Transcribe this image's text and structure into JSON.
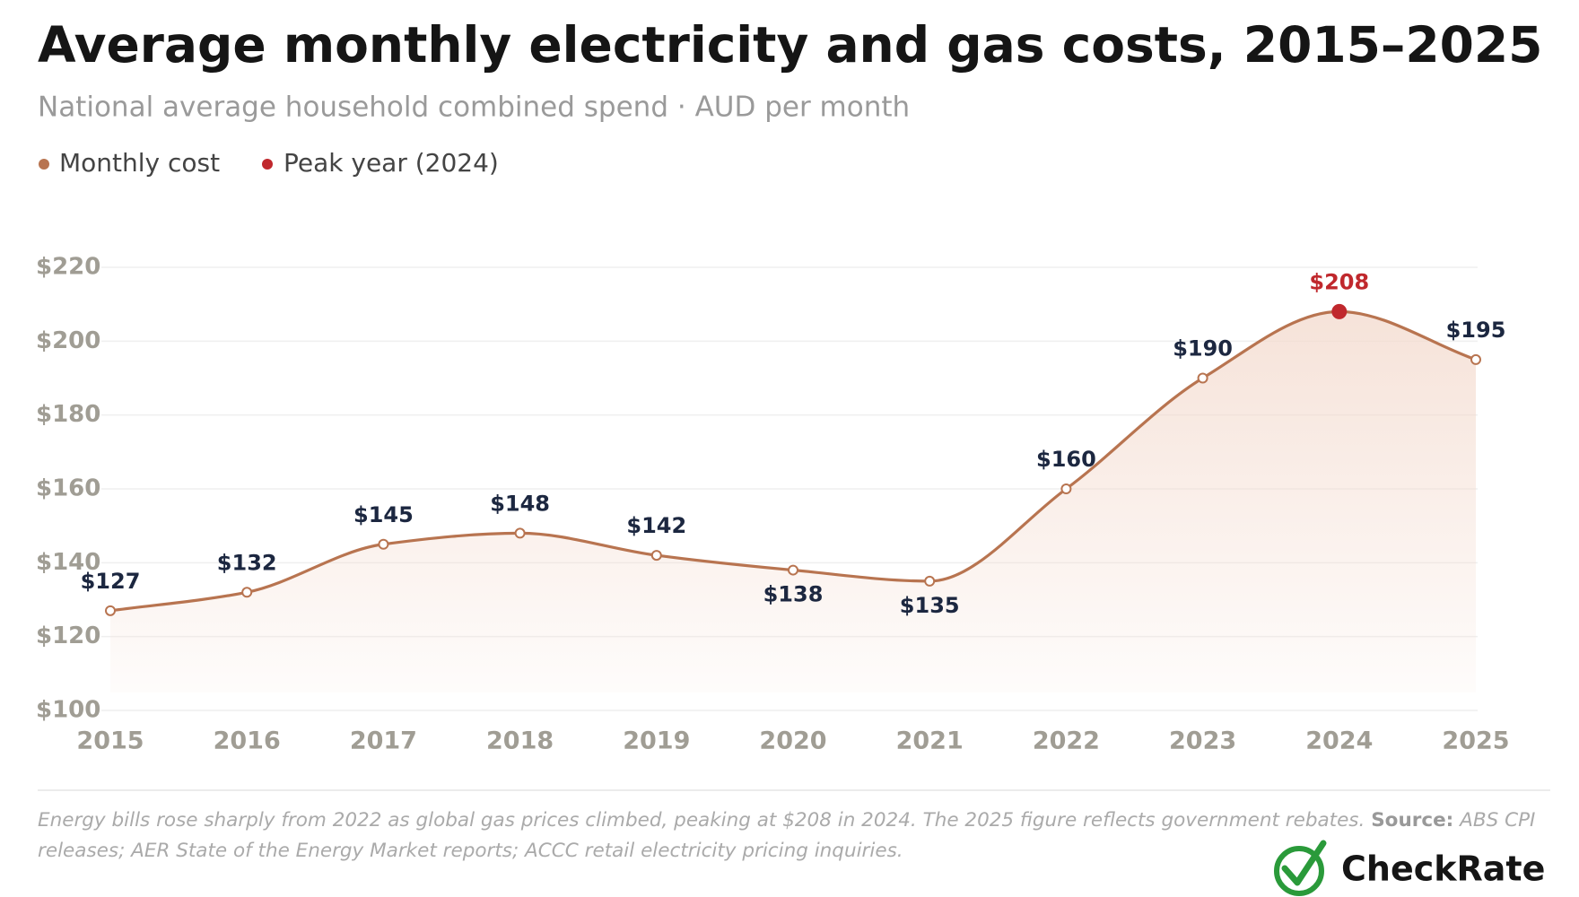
{
  "chart_data": {
    "type": "line",
    "title": "Average monthly electricity and gas costs, 2015–2025",
    "subtitle": "National average household combined spend · AUD per month",
    "categories": [
      "2015",
      "2016",
      "2017",
      "2018",
      "2019",
      "2020",
      "2021",
      "2022",
      "2023",
      "2024",
      "2025"
    ],
    "series": [
      {
        "name": "Monthly cost",
        "color": "#b87450",
        "values": [
          127,
          132,
          145,
          148,
          142,
          138,
          135,
          160,
          190,
          208,
          195
        ],
        "value_labels": [
          "$127",
          "$132",
          "$145",
          "$148",
          "$142",
          "$138",
          "$135",
          "$160",
          "$190",
          "$208",
          "$195"
        ]
      }
    ],
    "peak": {
      "name": "Peak year (2024)",
      "color": "#c0282d",
      "category": "2024"
    },
    "ylim": [
      100,
      220
    ],
    "yticks": [
      {
        "value": 100,
        "label": "$100"
      },
      {
        "value": 120,
        "label": "$120"
      },
      {
        "value": 140,
        "label": "$140"
      },
      {
        "value": 160,
        "label": "$160"
      },
      {
        "value": 180,
        "label": "$180"
      },
      {
        "value": 200,
        "label": "$200"
      },
      {
        "value": 220,
        "label": "$220"
      }
    ],
    "grid": true
  },
  "footnote": {
    "text": "Energy bills rose sharply from 2022 as global gas prices climbed, peaking at $208 in 2024. The 2025 figure reflects government rebates.",
    "source_label": "Source:",
    "source_text": "ABS CPI releases; AER State of the Energy Market reports; ACCC retail electricity pricing inquiries."
  },
  "logo": "CheckRate"
}
